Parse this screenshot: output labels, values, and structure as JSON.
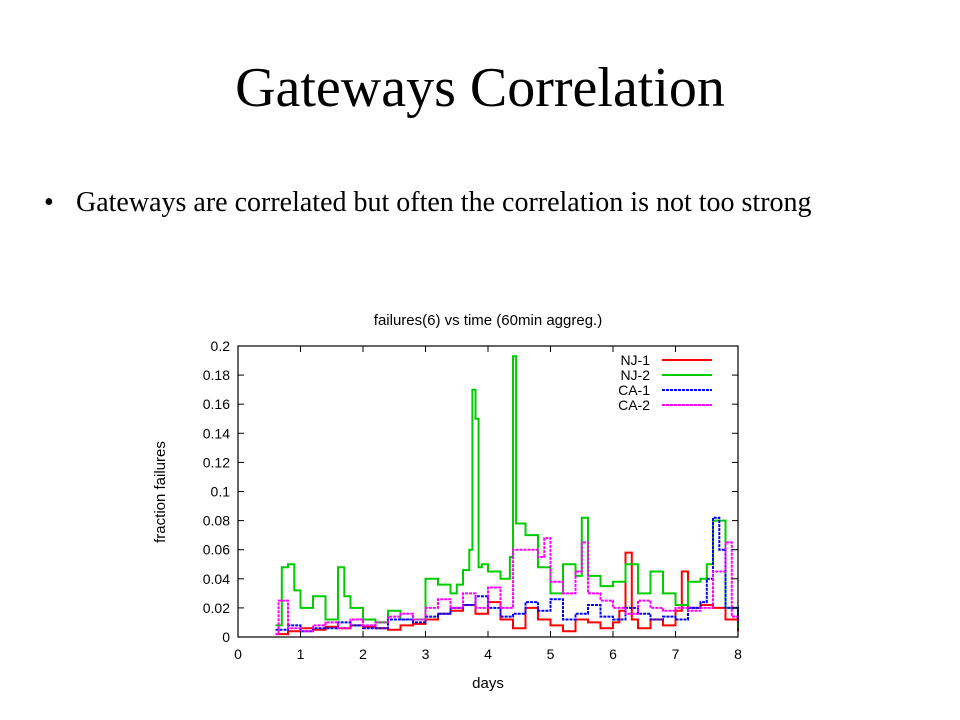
{
  "slide": {
    "title": "Gateways Correlation",
    "bullet_symbol": "•",
    "bullet_text": "Gateways are correlated but often the correlation is not too strong"
  },
  "chart_data": {
    "type": "line",
    "title": "failures(6)  vs time (60min aggreg.)",
    "xlabel": "days",
    "ylabel": "fraction failures",
    "xlim": [
      0,
      8
    ],
    "ylim": [
      0,
      0.2
    ],
    "xticks": [
      0,
      1,
      2,
      3,
      4,
      5,
      6,
      7,
      8
    ],
    "yticks": [
      0,
      0.02,
      0.04,
      0.06,
      0.08,
      0.1,
      0.12,
      0.14,
      0.16,
      0.18,
      0.2
    ],
    "grid": false,
    "legend_position": "top-right",
    "series": [
      {
        "name": "NJ-1",
        "color": "#ff0000",
        "style": "solid",
        "x": [
          0.6,
          0.8,
          1.0,
          1.2,
          1.4,
          1.6,
          1.8,
          2.0,
          2.2,
          2.4,
          2.6,
          2.8,
          3.0,
          3.2,
          3.4,
          3.6,
          3.8,
          4.0,
          4.2,
          4.4,
          4.6,
          4.8,
          5.0,
          5.2,
          5.4,
          5.6,
          5.8,
          6.0,
          6.1,
          6.2,
          6.3,
          6.4,
          6.6,
          6.8,
          7.0,
          7.1,
          7.2,
          7.4,
          7.6,
          7.8,
          8.0
        ],
        "y": [
          0.002,
          0.004,
          0.006,
          0.005,
          0.007,
          0.006,
          0.008,
          0.007,
          0.006,
          0.005,
          0.008,
          0.009,
          0.012,
          0.016,
          0.018,
          0.022,
          0.016,
          0.024,
          0.012,
          0.006,
          0.02,
          0.012,
          0.008,
          0.004,
          0.012,
          0.01,
          0.006,
          0.01,
          0.018,
          0.058,
          0.012,
          0.006,
          0.012,
          0.008,
          0.018,
          0.045,
          0.02,
          0.022,
          0.02,
          0.012,
          0.004
        ]
      },
      {
        "name": "NJ-2",
        "color": "#00cc00",
        "style": "solid",
        "x": [
          0.6,
          0.7,
          0.8,
          0.9,
          1.0,
          1.2,
          1.4,
          1.6,
          1.7,
          1.8,
          2.0,
          2.2,
          2.4,
          2.6,
          2.8,
          3.0,
          3.2,
          3.4,
          3.5,
          3.6,
          3.7,
          3.75,
          3.8,
          3.85,
          3.9,
          4.0,
          4.2,
          4.35,
          4.4,
          4.45,
          4.6,
          4.8,
          5.0,
          5.2,
          5.4,
          5.5,
          5.6,
          5.8,
          6.0,
          6.2,
          6.4,
          6.6,
          6.8,
          7.0,
          7.2,
          7.4,
          7.5,
          7.6,
          7.8,
          8.0
        ],
        "y": [
          0.008,
          0.048,
          0.05,
          0.032,
          0.02,
          0.028,
          0.012,
          0.048,
          0.028,
          0.02,
          0.012,
          0.01,
          0.018,
          0.012,
          0.012,
          0.04,
          0.036,
          0.03,
          0.036,
          0.046,
          0.06,
          0.17,
          0.15,
          0.048,
          0.05,
          0.045,
          0.04,
          0.055,
          0.193,
          0.078,
          0.07,
          0.048,
          0.03,
          0.05,
          0.042,
          0.082,
          0.042,
          0.035,
          0.038,
          0.05,
          0.03,
          0.045,
          0.03,
          0.022,
          0.038,
          0.04,
          0.05,
          0.08,
          0.02,
          0.006
        ]
      },
      {
        "name": "CA-1",
        "color": "#0000ff",
        "style": "dashed",
        "x": [
          0.6,
          0.8,
          1.0,
          1.2,
          1.4,
          1.6,
          1.8,
          2.0,
          2.2,
          2.4,
          2.6,
          2.8,
          3.0,
          3.2,
          3.4,
          3.6,
          3.8,
          4.0,
          4.2,
          4.4,
          4.6,
          4.8,
          5.0,
          5.2,
          5.4,
          5.6,
          5.8,
          6.0,
          6.2,
          6.4,
          6.6,
          6.8,
          7.0,
          7.2,
          7.4,
          7.5,
          7.6,
          7.7,
          7.8,
          8.0
        ],
        "y": [
          0.005,
          0.008,
          0.004,
          0.006,
          0.006,
          0.01,
          0.008,
          0.006,
          0.006,
          0.012,
          0.012,
          0.01,
          0.014,
          0.016,
          0.02,
          0.022,
          0.028,
          0.02,
          0.014,
          0.016,
          0.024,
          0.018,
          0.026,
          0.012,
          0.016,
          0.022,
          0.014,
          0.012,
          0.02,
          0.016,
          0.012,
          0.014,
          0.012,
          0.02,
          0.024,
          0.04,
          0.082,
          0.06,
          0.02,
          0.01
        ]
      },
      {
        "name": "CA-2",
        "color": "#ff00ff",
        "style": "dashed",
        "x": [
          0.6,
          0.65,
          0.8,
          1.0,
          1.2,
          1.4,
          1.6,
          1.8,
          2.0,
          2.2,
          2.4,
          2.6,
          2.8,
          3.0,
          3.2,
          3.4,
          3.6,
          3.8,
          4.0,
          4.2,
          4.4,
          4.6,
          4.8,
          4.9,
          5.0,
          5.2,
          5.4,
          5.5,
          5.6,
          5.8,
          6.0,
          6.2,
          6.4,
          6.6,
          6.8,
          7.0,
          7.2,
          7.4,
          7.6,
          7.8,
          7.9,
          8.0
        ],
        "y": [
          0.002,
          0.025,
          0.006,
          0.004,
          0.008,
          0.01,
          0.006,
          0.012,
          0.008,
          0.01,
          0.014,
          0.016,
          0.012,
          0.02,
          0.026,
          0.02,
          0.03,
          0.02,
          0.034,
          0.02,
          0.06,
          0.06,
          0.055,
          0.068,
          0.038,
          0.03,
          0.045,
          0.065,
          0.03,
          0.025,
          0.02,
          0.016,
          0.025,
          0.02,
          0.018,
          0.02,
          0.018,
          0.02,
          0.045,
          0.065,
          0.014,
          0.01
        ]
      }
    ]
  }
}
